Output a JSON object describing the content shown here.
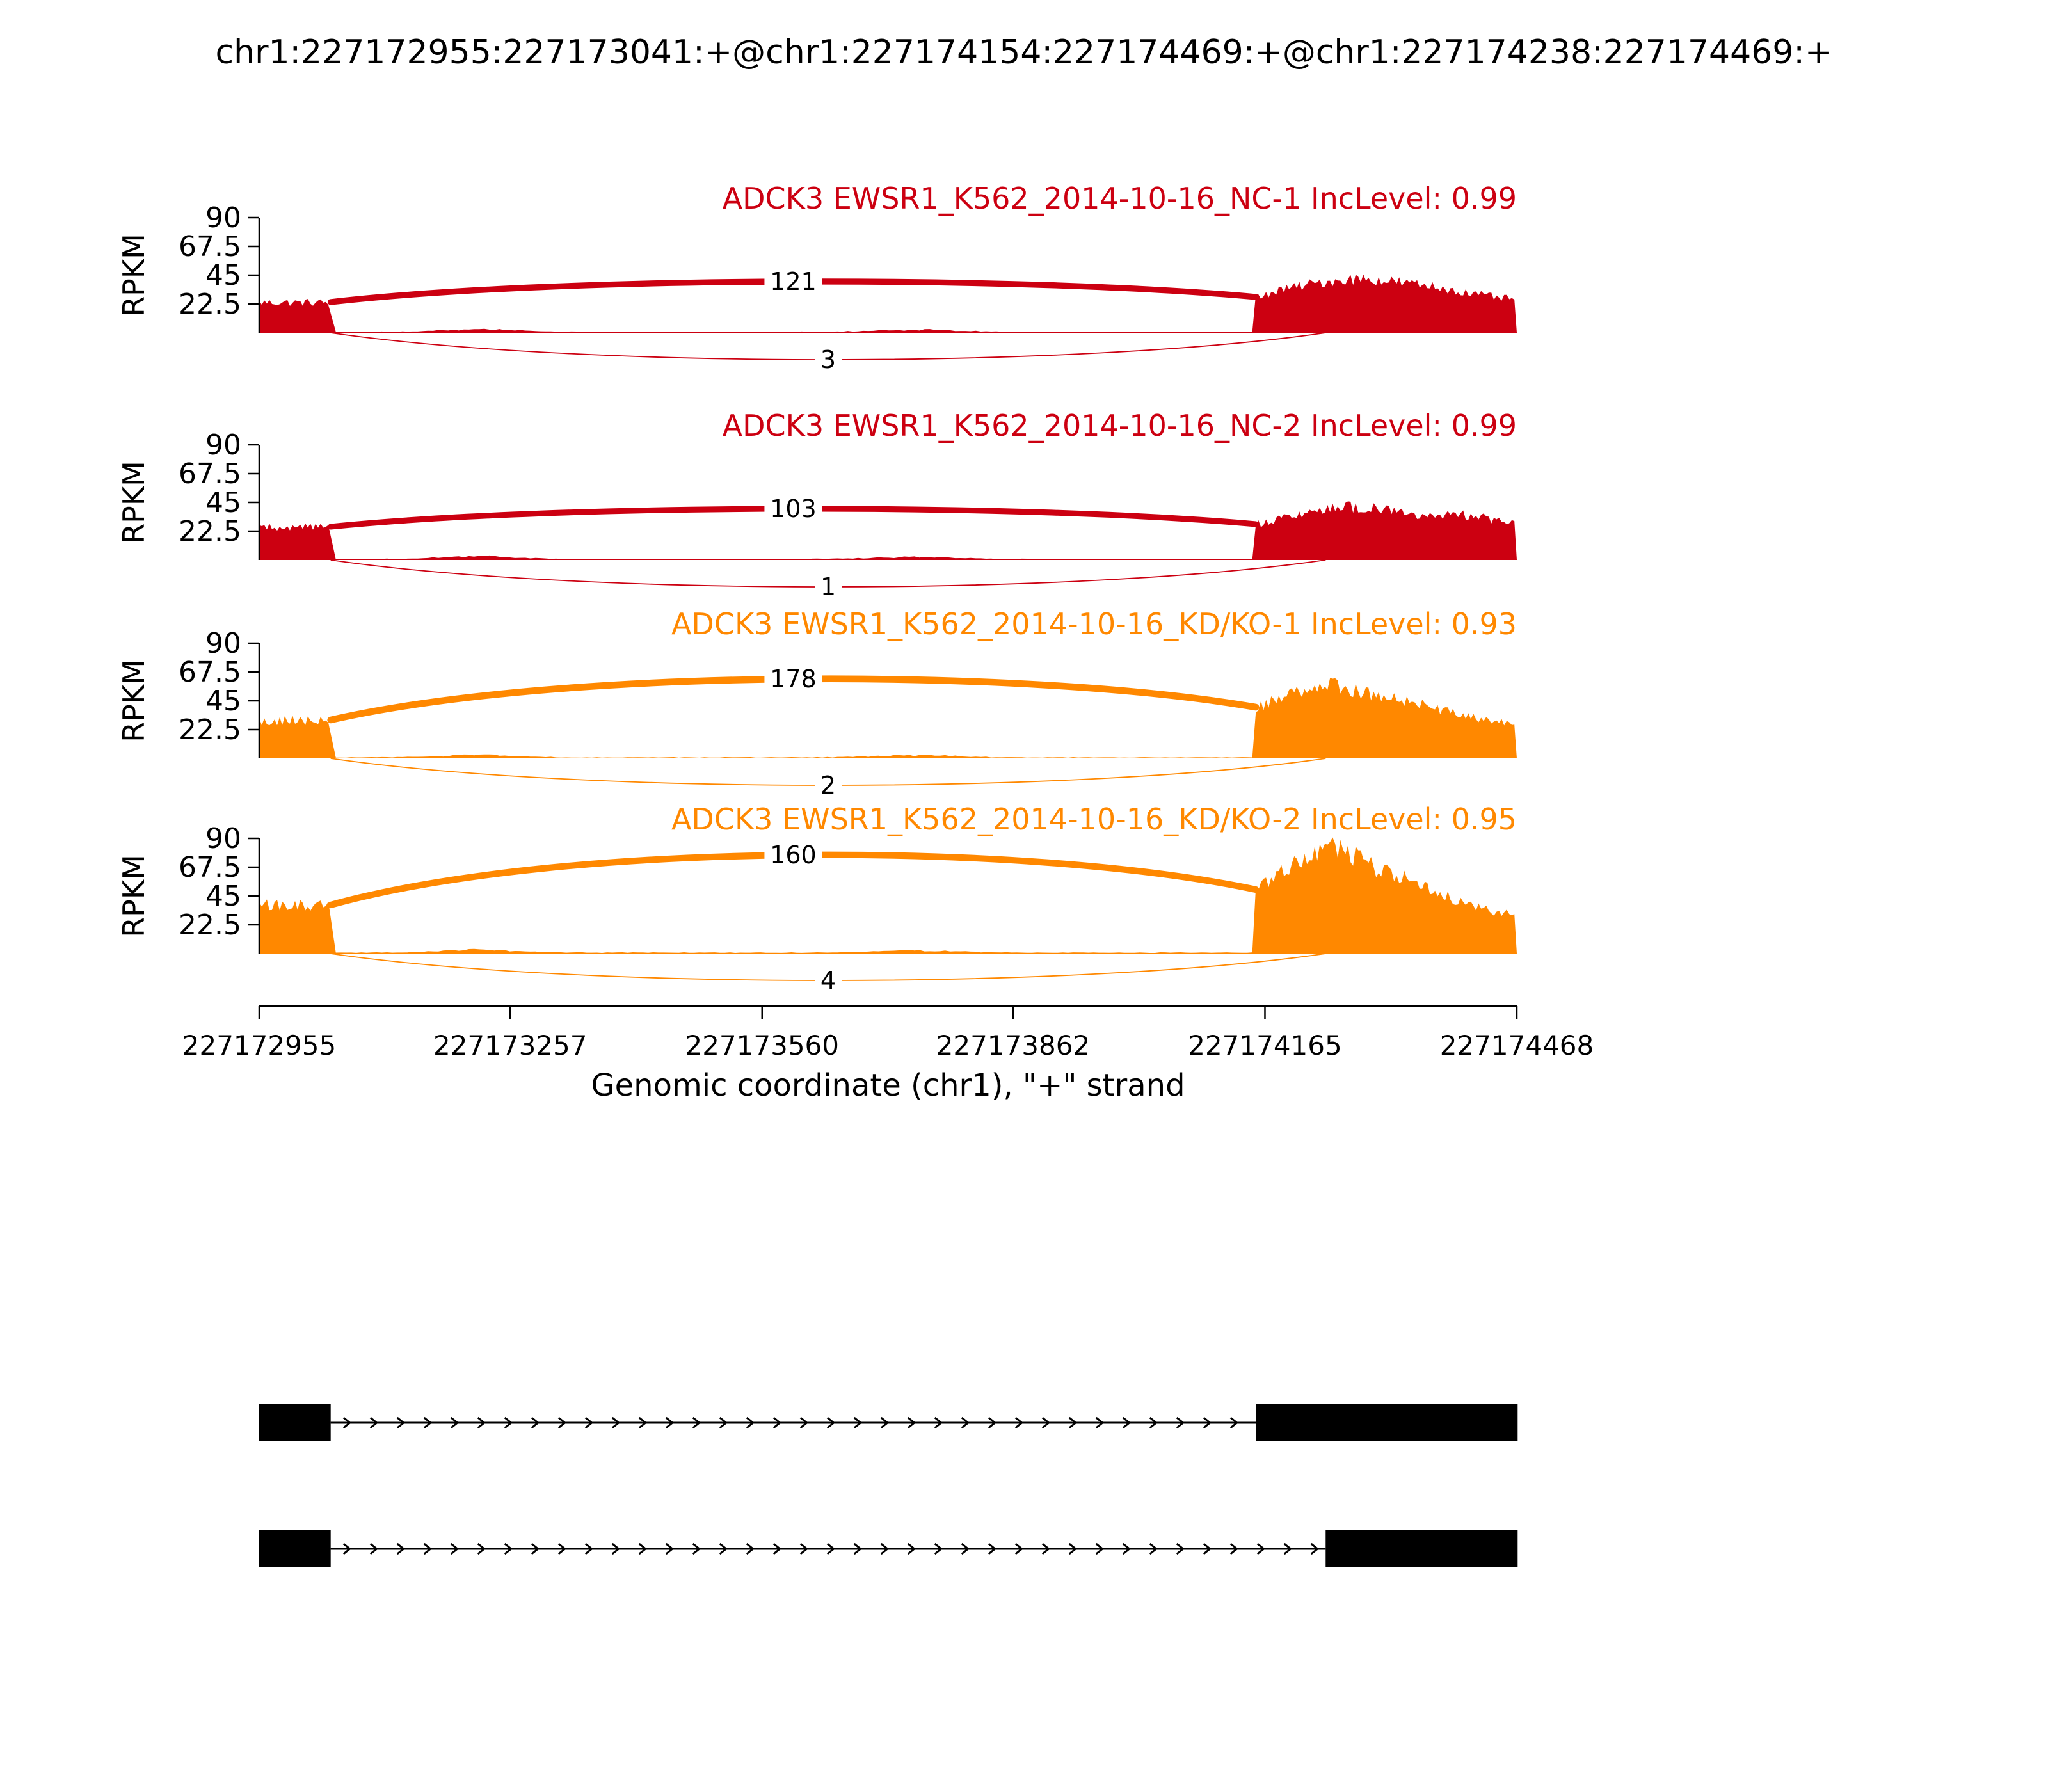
{
  "title": "chr1:227172955:227173041:+@chr1:227174154:227174469:+@chr1:227174238:227174469:+",
  "colors": {
    "nc_red": "#CC0011",
    "kd_orange": "#FF8800",
    "ink": "#000000",
    "background": "#FFFFFF"
  },
  "axis": {
    "ylabel": "RPKM",
    "yticks": [
      22.5,
      45,
      67.5,
      90
    ],
    "ymax": 90,
    "xlabel": "Genomic coordinate (chr1), \"+\" strand",
    "xticks": [
      227172955,
      227173257,
      227173560,
      227173862,
      227174165,
      227174468
    ],
    "xmin": 227172955,
    "xmax": 227174468
  },
  "chart_data": {
    "type": "sashimi",
    "gene": "ADCK3",
    "chromosome": "chr1",
    "strand": "+",
    "xmin": 227172955,
    "xmax": 227174468,
    "ylabel": "RPKM",
    "yticks": [
      22.5,
      45,
      67.5,
      90
    ],
    "xlabel": "Genomic coordinate (chr1), \"+\" strand",
    "tracks": [
      {
        "label": "ADCK3 EWSR1_K562_2014-10-16_NC-1 IncLevel: 0.99",
        "inc_level": 0.99,
        "color": "#CC0011",
        "junctions": [
          {
            "from": 227173041,
            "to": 227174154,
            "reads": 121,
            "side": "top"
          },
          {
            "from": 227173041,
            "to": 227174238,
            "reads": 3,
            "side": "bottom"
          }
        ],
        "left_exon_rpkm": 24,
        "right_exon_rpkm_profile": [
          [
            0,
            28
          ],
          [
            0.1,
            34
          ],
          [
            0.25,
            40
          ],
          [
            0.4,
            43
          ],
          [
            0.55,
            40
          ],
          [
            0.7,
            36
          ],
          [
            0.85,
            30
          ],
          [
            1,
            26
          ]
        ],
        "arc_apex_rpkm": 40
      },
      {
        "label": "ADCK3 EWSR1_K562_2014-10-16_NC-2 IncLevel: 0.99",
        "inc_level": 0.99,
        "color": "#CC0011",
        "junctions": [
          {
            "from": 227173041,
            "to": 227174154,
            "reads": 103,
            "side": "top"
          },
          {
            "from": 227173041,
            "to": 227174238,
            "reads": 1,
            "side": "bottom"
          }
        ],
        "left_exon_rpkm": 26,
        "right_exon_rpkm_profile": [
          [
            0,
            28
          ],
          [
            0.15,
            36
          ],
          [
            0.35,
            42
          ],
          [
            0.5,
            40
          ],
          [
            0.65,
            34
          ],
          [
            0.8,
            36
          ],
          [
            1,
            28
          ]
        ],
        "arc_apex_rpkm": 40
      },
      {
        "label": "ADCK3 EWSR1_K562_2014-10-16_KD/KO-1 IncLevel: 0.93",
        "inc_level": 0.93,
        "color": "#FF8800",
        "junctions": [
          {
            "from": 227173041,
            "to": 227174154,
            "reads": 178,
            "side": "top"
          },
          {
            "from": 227173041,
            "to": 227174238,
            "reads": 2,
            "side": "bottom"
          }
        ],
        "left_exon_rpkm": 30,
        "right_exon_rpkm_profile": [
          [
            0,
            40
          ],
          [
            0.15,
            52
          ],
          [
            0.3,
            58
          ],
          [
            0.45,
            50
          ],
          [
            0.6,
            44
          ],
          [
            0.75,
            36
          ],
          [
            0.9,
            30
          ],
          [
            1,
            28
          ]
        ],
        "arc_apex_rpkm": 62
      },
      {
        "label": "ADCK3 EWSR1_K562_2014-10-16_KD/KO-2 IncLevel: 0.95",
        "inc_level": 0.95,
        "color": "#FF8800",
        "junctions": [
          {
            "from": 227173041,
            "to": 227174154,
            "reads": 160,
            "side": "top"
          },
          {
            "from": 227173041,
            "to": 227174238,
            "reads": 4,
            "side": "bottom"
          }
        ],
        "left_exon_rpkm": 38,
        "right_exon_rpkm_profile": [
          [
            0,
            50
          ],
          [
            0.15,
            72
          ],
          [
            0.3,
            86
          ],
          [
            0.45,
            68
          ],
          [
            0.6,
            58
          ],
          [
            0.75,
            44
          ],
          [
            0.9,
            34
          ],
          [
            1,
            30
          ]
        ],
        "arc_apex_rpkm": 77
      }
    ],
    "annotation": {
      "exons": [
        {
          "start": 227172955,
          "end": 227173041
        },
        {
          "start": 227174154,
          "end": 227174469
        },
        {
          "start": 227174238,
          "end": 227174469
        }
      ],
      "isoforms": [
        {
          "exons": [
            [
              227172955,
              227173041
            ],
            [
              227174154,
              227174469
            ]
          ]
        },
        {
          "exons": [
            [
              227172955,
              227173041
            ],
            [
              227174238,
              227174469
            ]
          ]
        }
      ]
    }
  }
}
